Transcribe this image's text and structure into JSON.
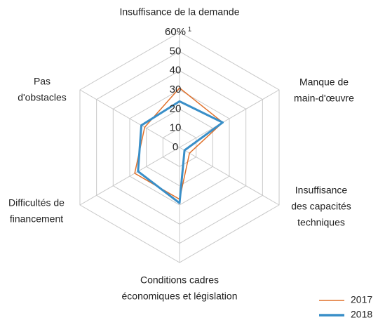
{
  "chart_data": {
    "type": "radar",
    "categories": [
      [
        "Insuffisance de la demande"
      ],
      [
        "Manque de",
        "main-d'œuvre"
      ],
      [
        "Insuffisance",
        "des capacités",
        "techniques"
      ],
      [
        "Conditions cadres",
        "économiques et législation"
      ],
      [
        "Difficultés de",
        "financement"
      ],
      [
        "Pas",
        "d'obstacles"
      ]
    ],
    "series": [
      {
        "name": "2017",
        "color": "#e0702a",
        "values": [
          31,
          26,
          6,
          27,
          27,
          21
        ]
      },
      {
        "name": "2018",
        "color": "#3a8fc8",
        "values": [
          24,
          26,
          3,
          29,
          25,
          23
        ]
      }
    ],
    "ylim": [
      0,
      60
    ],
    "yticks": [
      0,
      10,
      20,
      30,
      40,
      50,
      {
        "value": 60,
        "label": "60%"
      }
    ],
    "tick_footnote": "1",
    "grid": true,
    "legend": "bottom-right"
  }
}
